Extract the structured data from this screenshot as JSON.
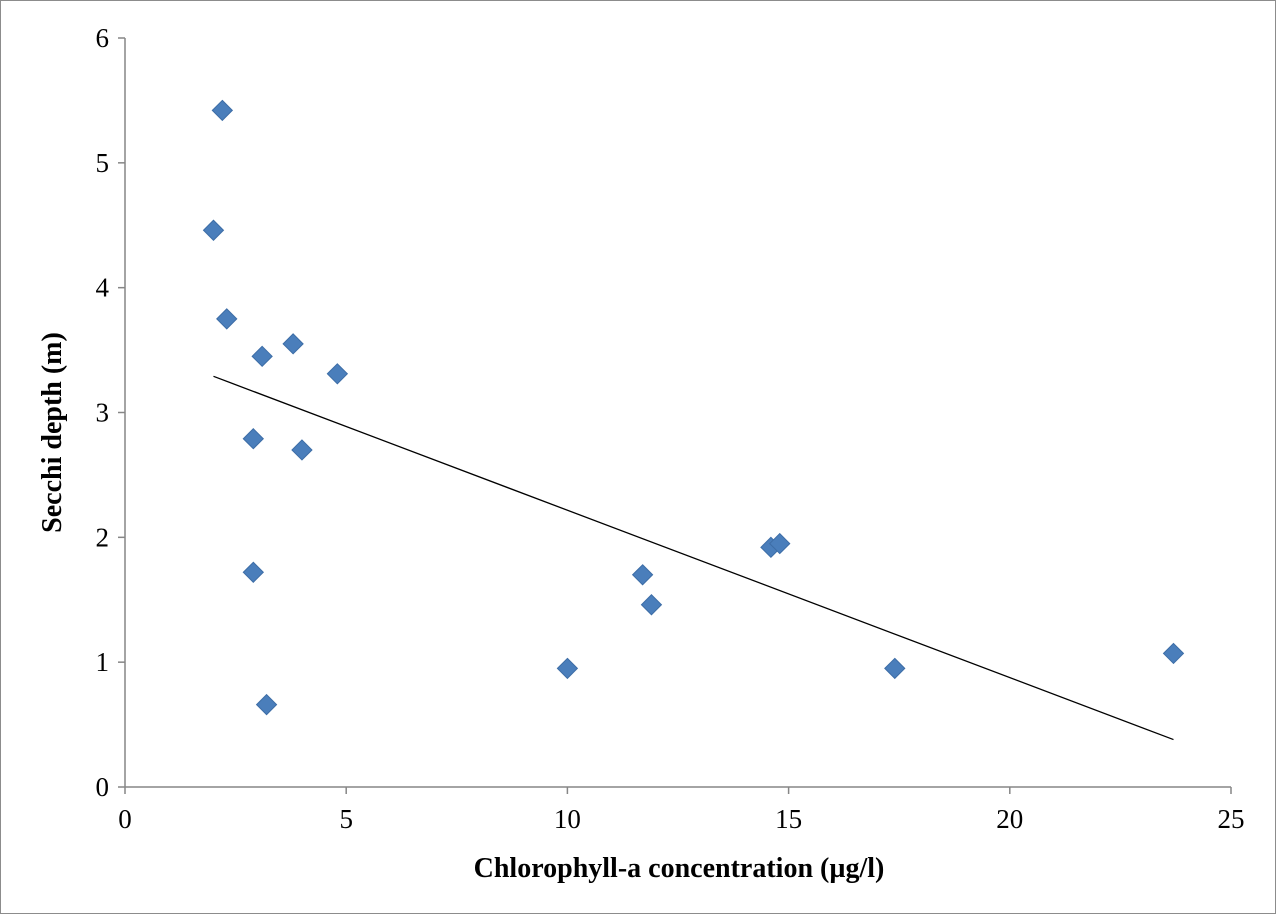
{
  "chart_data": {
    "type": "scatter",
    "xlabel": "Chlorophyll-a concentration (µg/l)",
    "ylabel": "Secchi depth (m)",
    "xlim": [
      0,
      25
    ],
    "ylim": [
      0,
      6
    ],
    "x_ticks": [
      "0",
      "5",
      "10",
      "15",
      "20",
      "25"
    ],
    "y_ticks": [
      "0",
      "1",
      "2",
      "3",
      "4",
      "5",
      "6"
    ],
    "grid": false,
    "marker": "diamond",
    "marker_color": "#4a7ebb",
    "trendline_color": "#000000",
    "points": [
      {
        "x": 2.2,
        "y": 5.42
      },
      {
        "x": 2.0,
        "y": 4.46
      },
      {
        "x": 2.3,
        "y": 3.75
      },
      {
        "x": 3.1,
        "y": 3.45
      },
      {
        "x": 3.8,
        "y": 3.55
      },
      {
        "x": 4.8,
        "y": 3.31
      },
      {
        "x": 2.9,
        "y": 2.79
      },
      {
        "x": 4.0,
        "y": 2.7
      },
      {
        "x": 2.9,
        "y": 1.72
      },
      {
        "x": 3.2,
        "y": 0.66
      },
      {
        "x": 10.0,
        "y": 0.95
      },
      {
        "x": 11.7,
        "y": 1.7
      },
      {
        "x": 11.9,
        "y": 1.46
      },
      {
        "x": 14.6,
        "y": 1.92
      },
      {
        "x": 14.8,
        "y": 1.95
      },
      {
        "x": 17.4,
        "y": 0.95
      },
      {
        "x": 23.7,
        "y": 1.07
      }
    ],
    "trendline": {
      "x": [
        2.0,
        23.7
      ],
      "y": [
        3.29,
        0.38
      ]
    }
  }
}
